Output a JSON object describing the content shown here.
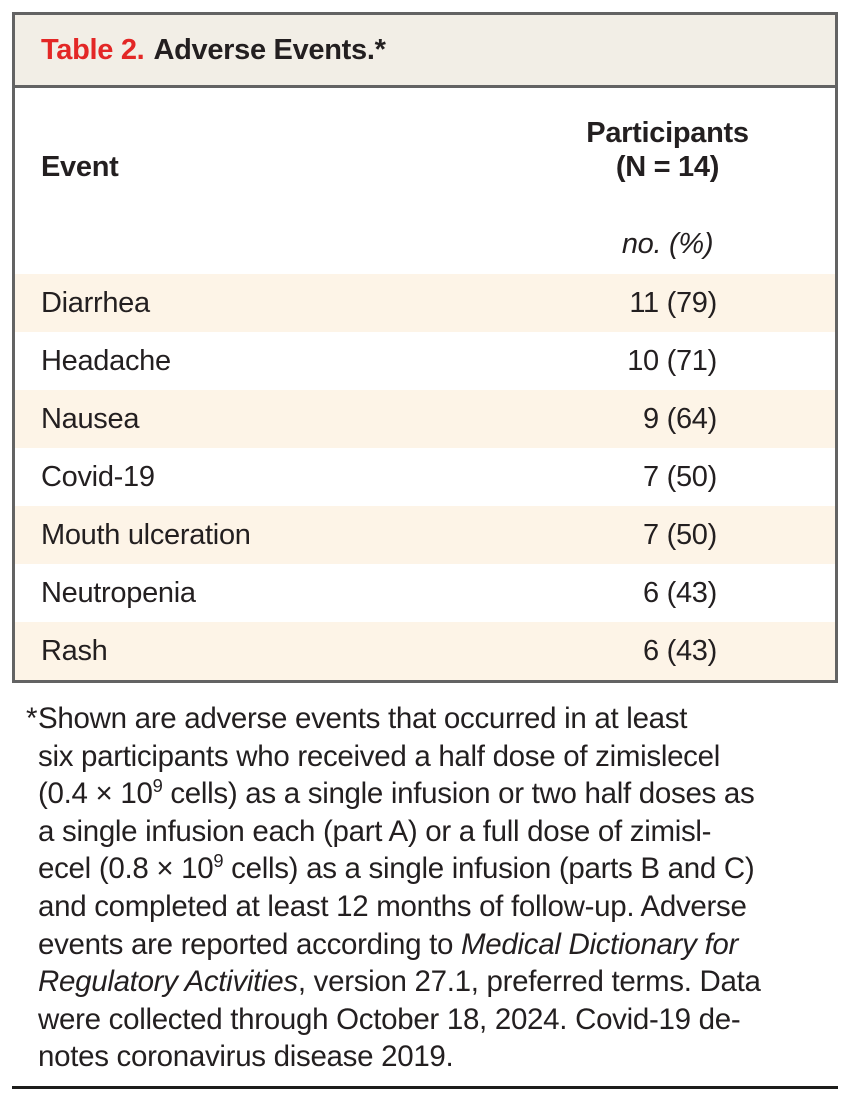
{
  "table": {
    "title_label": "Table 2.",
    "title_text": "Adverse Events.*",
    "columns": {
      "event": "Event",
      "participants_line1": "Participants",
      "participants_line2": "(N = 14)",
      "unit": "no. (%)"
    },
    "rows": [
      {
        "event": "Diarrhea",
        "value": "11 (79)"
      },
      {
        "event": "Headache",
        "value": "10 (71)"
      },
      {
        "event": "Nausea",
        "value": "9 (64)"
      },
      {
        "event": "Covid-19",
        "value": "7 (50)"
      },
      {
        "event": "Mouth ulceration",
        "value": "7 (50)"
      },
      {
        "event": "Neutropenia",
        "value": "6 (43)"
      },
      {
        "event": "Rash",
        "value": "6 (43)"
      }
    ]
  },
  "footnote": {
    "marker": "*",
    "lines": [
      [
        {
          "t": "Shown are adverse events that occurred in at least",
          "s": "n"
        }
      ],
      [
        {
          "t": "six participants who received a half dose of zimislecel",
          "s": "n"
        }
      ],
      [
        {
          "t": "(0.4 × 10",
          "s": "n"
        },
        {
          "t": "9",
          "s": "sup"
        },
        {
          "t": " cells) as a single infusion or two half doses as",
          "s": "n"
        }
      ],
      [
        {
          "t": "a single infusion each (part A) or a full dose of zimisl-",
          "s": "n"
        }
      ],
      [
        {
          "t": "ecel (0.8 × 10",
          "s": "n"
        },
        {
          "t": "9",
          "s": "sup"
        },
        {
          "t": " cells) as a single infusion (parts B and C)",
          "s": "n"
        }
      ],
      [
        {
          "t": "and completed at least 12 months of follow-up. Adverse",
          "s": "n"
        }
      ],
      [
        {
          "t": "events are reported according to ",
          "s": "n"
        },
        {
          "t": "Medical Dictionary for",
          "s": "i"
        }
      ],
      [
        {
          "t": "Regulatory Activities",
          "s": "i"
        },
        {
          "t": ", version 27.1, preferred terms. Data",
          "s": "n"
        }
      ],
      [
        {
          "t": "were collected through October 18, 2024. Covid-19 de-",
          "s": "n"
        }
      ],
      [
        {
          "t": "notes coronavirus disease 2019.",
          "s": "n"
        }
      ]
    ]
  },
  "colors": {
    "title_accent_red": "#e32726",
    "title_bar_bg": "#f2eee6",
    "row_alt_bg": "#fdf4e7",
    "table_border_gray": "#636363",
    "text": "#231f20",
    "bottom_rule": "#1d1d1b"
  }
}
